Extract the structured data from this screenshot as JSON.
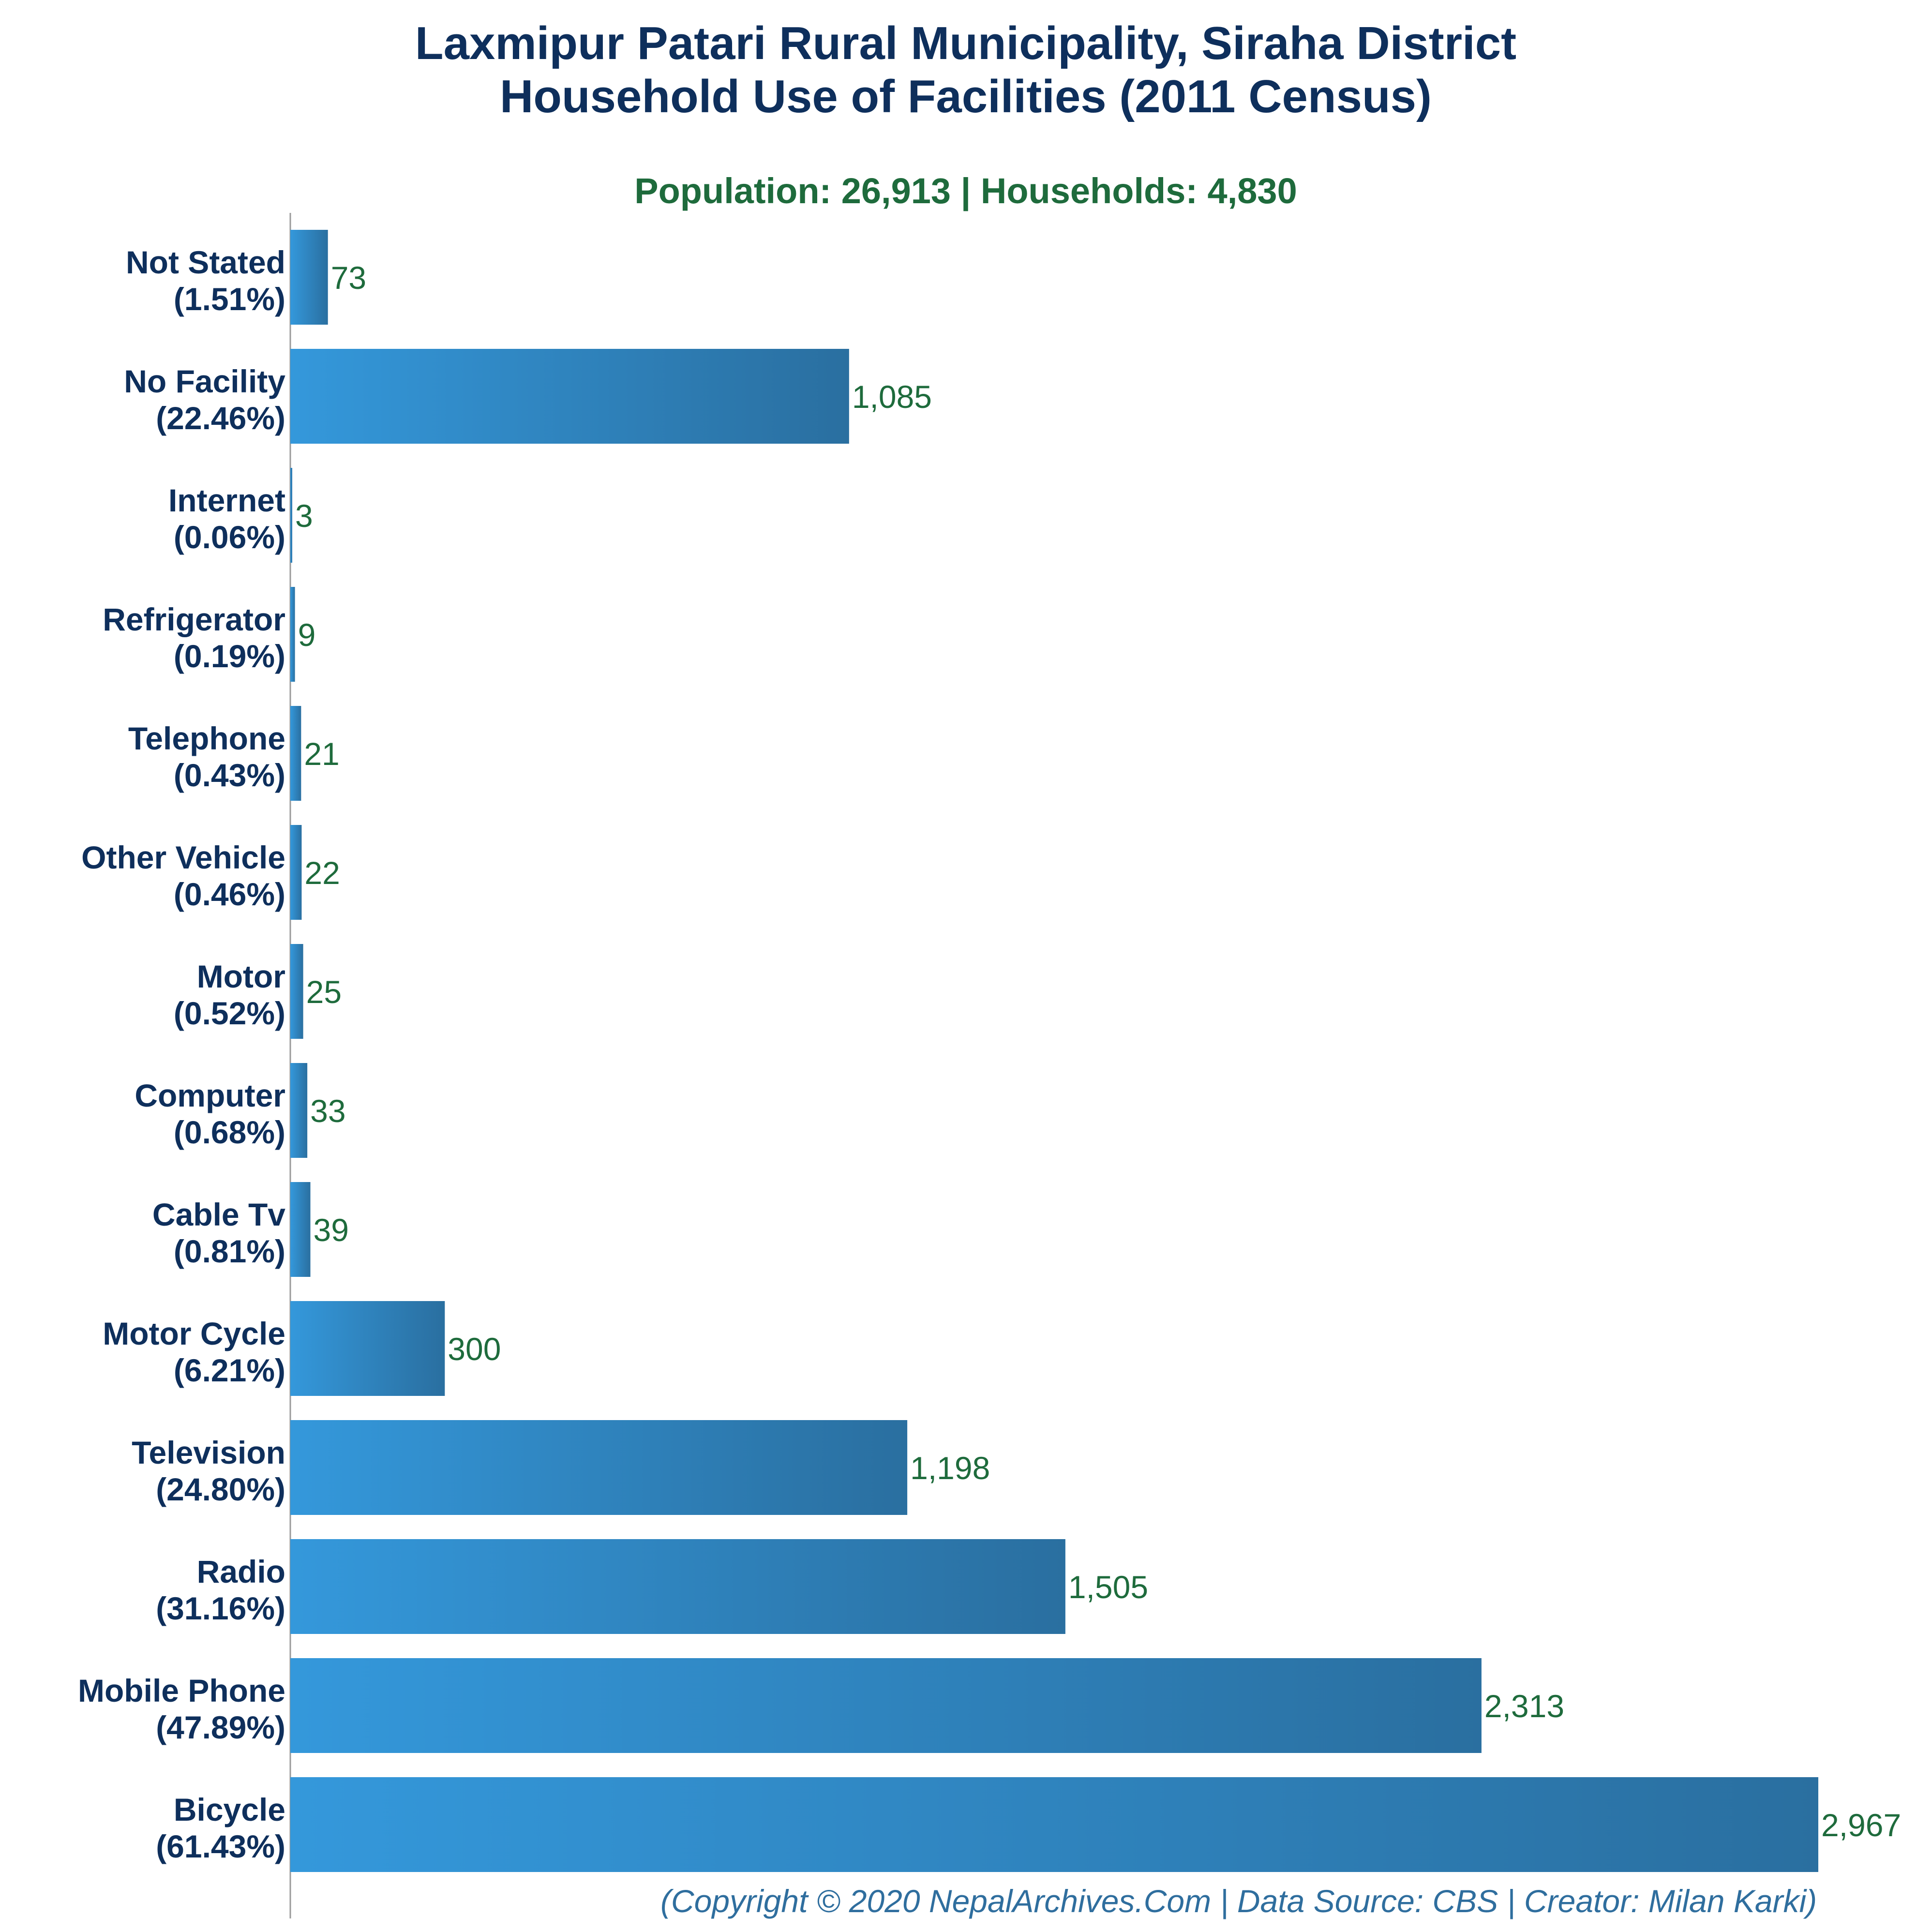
{
  "chart_data": {
    "type": "bar",
    "orientation": "horizontal",
    "title": [
      "Laxmipur Patari Rural Municipality, Siraha District",
      "Household Use of Facilities (2011 Census)"
    ],
    "subtitle": "Population: 26,913 | Households: 4,830",
    "footer": "(Copyright © 2020 NepalArchives.Com | Data Source: CBS | Creator: Milan Karki)",
    "xlim": [
      0,
      2967
    ],
    "grid": false,
    "colors": {
      "bar_light": "#3498db",
      "bar_dark": "#2a6fa0",
      "title": "#0e2f5c",
      "subtitle": "#1e6b3c",
      "value_label": "#1e6b3c",
      "footer": "#2f6e9e"
    },
    "categories": [
      {
        "name": "Not Stated",
        "percent": "(1.51%)",
        "value": 73,
        "value_label": "73"
      },
      {
        "name": "No Facility",
        "percent": "(22.46%)",
        "value": 1085,
        "value_label": "1,085"
      },
      {
        "name": "Internet",
        "percent": "(0.06%)",
        "value": 3,
        "value_label": "3"
      },
      {
        "name": "Refrigerator",
        "percent": "(0.19%)",
        "value": 9,
        "value_label": "9"
      },
      {
        "name": "Telephone",
        "percent": "(0.43%)",
        "value": 21,
        "value_label": "21"
      },
      {
        "name": "Other Vehicle",
        "percent": "(0.46%)",
        "value": 22,
        "value_label": "22"
      },
      {
        "name": "Motor",
        "percent": "(0.52%)",
        "value": 25,
        "value_label": "25"
      },
      {
        "name": "Computer",
        "percent": "(0.68%)",
        "value": 33,
        "value_label": "33"
      },
      {
        "name": "Cable Tv",
        "percent": "(0.81%)",
        "value": 39,
        "value_label": "39"
      },
      {
        "name": "Motor Cycle",
        "percent": "(6.21%)",
        "value": 300,
        "value_label": "300"
      },
      {
        "name": "Television",
        "percent": "(24.80%)",
        "value": 1198,
        "value_label": "1,198"
      },
      {
        "name": "Radio",
        "percent": "(31.16%)",
        "value": 1505,
        "value_label": "1,505"
      },
      {
        "name": "Mobile Phone",
        "percent": "(47.89%)",
        "value": 2313,
        "value_label": "2,313"
      },
      {
        "name": "Bicycle",
        "percent": "(61.43%)",
        "value": 2967,
        "value_label": "2,967"
      }
    ]
  }
}
